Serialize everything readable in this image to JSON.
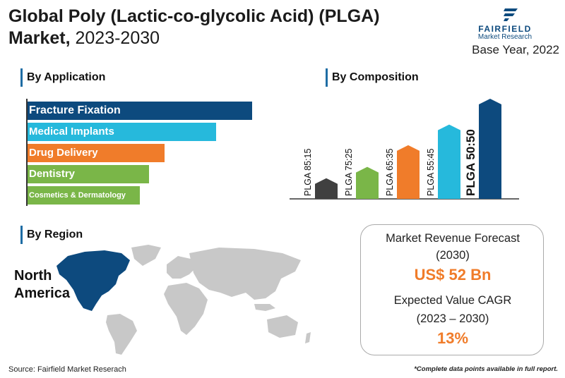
{
  "header": {
    "title_bold_1": "Global Poly (Lactic-co-glycolic Acid) (PLGA)",
    "title_bold_2": "Market,",
    "title_light": " 2023-2030",
    "base_year": "Base Year, 2022"
  },
  "logo": {
    "name": "FAIRFIELD",
    "sub": "Market Research",
    "icon": "fairfield-logo-mark",
    "color": "#0d4a7e"
  },
  "sections": {
    "application": "By Application",
    "composition": "By Composition",
    "region": "By Region"
  },
  "chart_data": [
    {
      "type": "bar",
      "orientation": "horizontal",
      "title": "By Application",
      "categories": [
        "Fracture Fixation",
        "Medical Implants",
        "Drug Delivery",
        "Dentistry",
        "Cosmetics & Dermatology"
      ],
      "values": [
        5,
        4.2,
        3.05,
        2.7,
        2.5
      ],
      "colors": [
        "#0d4a7e",
        "#26b9dc",
        "#f07c2a",
        "#7ab648",
        "#7ab648"
      ],
      "axis_labels_shown": false,
      "grid": false
    },
    {
      "type": "bar",
      "orientation": "vertical",
      "title": "By Composition",
      "categories": [
        "PLGA 85:15",
        "PLGA 75:25",
        "PLGA 65:35",
        "PLGA 55:45",
        "PLGA 50:50"
      ],
      "values": [
        1,
        1.55,
        2.6,
        3.6,
        4.85
      ],
      "colors": [
        "#404040",
        "#7ab648",
        "#f07c2a",
        "#26b9dc",
        "#0d4a7e"
      ],
      "highlight": "PLGA 50:50",
      "axis_labels_shown": false,
      "grid": false
    }
  ],
  "region": {
    "highlight": "North America",
    "label_line_1": "North",
    "label_line_2": "America",
    "highlight_color": "#0d4a7e",
    "base_color": "#c8c8c8"
  },
  "kpi": {
    "forecast_label_1": "Market Revenue Forecast",
    "forecast_label_2": "(2030)",
    "forecast_value": "US$ 52 Bn",
    "cagr_label_1": "Expected Value CAGR",
    "cagr_label_2": "(2023 – 2030)",
    "cagr_value": "13%",
    "accent_color": "#f07c2a"
  },
  "footer": {
    "source": "Source: Fairfield Market Reserach",
    "note": "*Complete data points available in full report."
  }
}
